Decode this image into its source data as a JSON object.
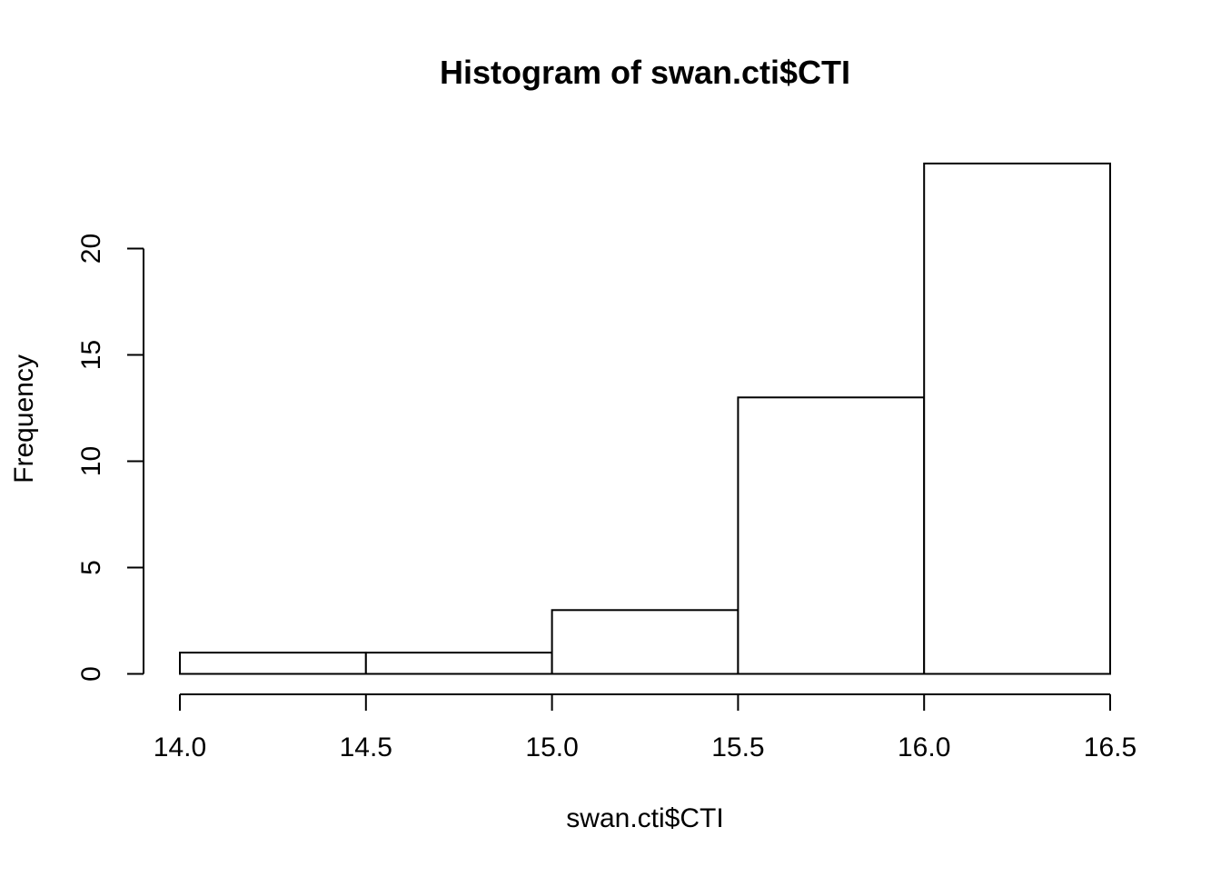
{
  "chart_data": {
    "type": "bar",
    "title": "Histogram of swan.cti$CTI",
    "xlabel": "swan.cti$CTI",
    "ylabel": "Frequency",
    "bins": [
      {
        "from": 14.0,
        "to": 14.5,
        "count": 1
      },
      {
        "from": 14.5,
        "to": 15.0,
        "count": 1
      },
      {
        "from": 15.0,
        "to": 15.5,
        "count": 3
      },
      {
        "from": 15.5,
        "to": 16.0,
        "count": 13
      },
      {
        "from": 16.0,
        "to": 16.5,
        "count": 24
      }
    ],
    "xlim": [
      14.0,
      16.5
    ],
    "ylim": [
      0,
      24
    ],
    "x_ticks": [
      14.0,
      14.5,
      15.0,
      15.5,
      16.0,
      16.5
    ],
    "x_tick_labels": [
      "14.0",
      "14.5",
      "15.0",
      "15.5",
      "16.0",
      "16.5"
    ],
    "y_ticks": [
      0,
      5,
      10,
      15,
      20
    ],
    "y_tick_labels": [
      "0",
      "5",
      "10",
      "15",
      "20"
    ],
    "grid": false,
    "legend": "none",
    "colors": {
      "bar_fill": "#ffffff",
      "bar_stroke": "#000000",
      "axis": "#000000"
    }
  }
}
